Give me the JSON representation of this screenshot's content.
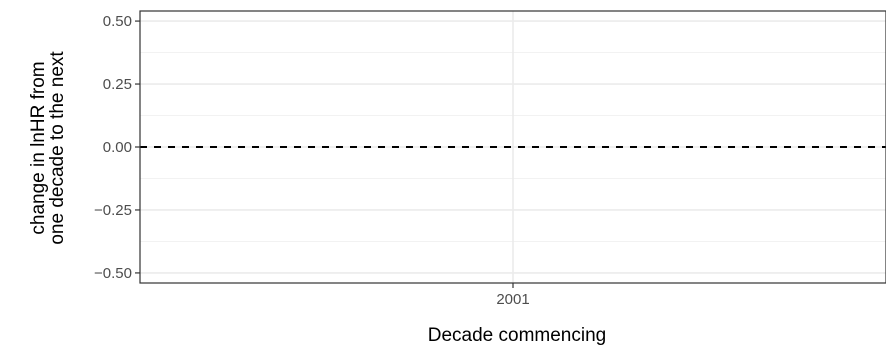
{
  "chart_data": {
    "type": "line",
    "title": "",
    "xlabel": "Decade commencing",
    "ylabel_lines": [
      "change in lnHR from",
      "one decade to the next"
    ],
    "x_categories": [
      "2001"
    ],
    "ylim": [
      -0.54,
      0.54
    ],
    "y_ticks": [
      -0.5,
      -0.25,
      0.0,
      0.25,
      0.5
    ],
    "y_tick_labels": [
      "−0.50",
      "−0.25",
      "0.00",
      "0.25",
      "0.50"
    ],
    "y_minor_ticks": [
      -0.375,
      -0.125,
      0.125,
      0.375
    ],
    "reference_line": {
      "y": 0,
      "style": "dashed"
    },
    "grid": true,
    "series": []
  }
}
